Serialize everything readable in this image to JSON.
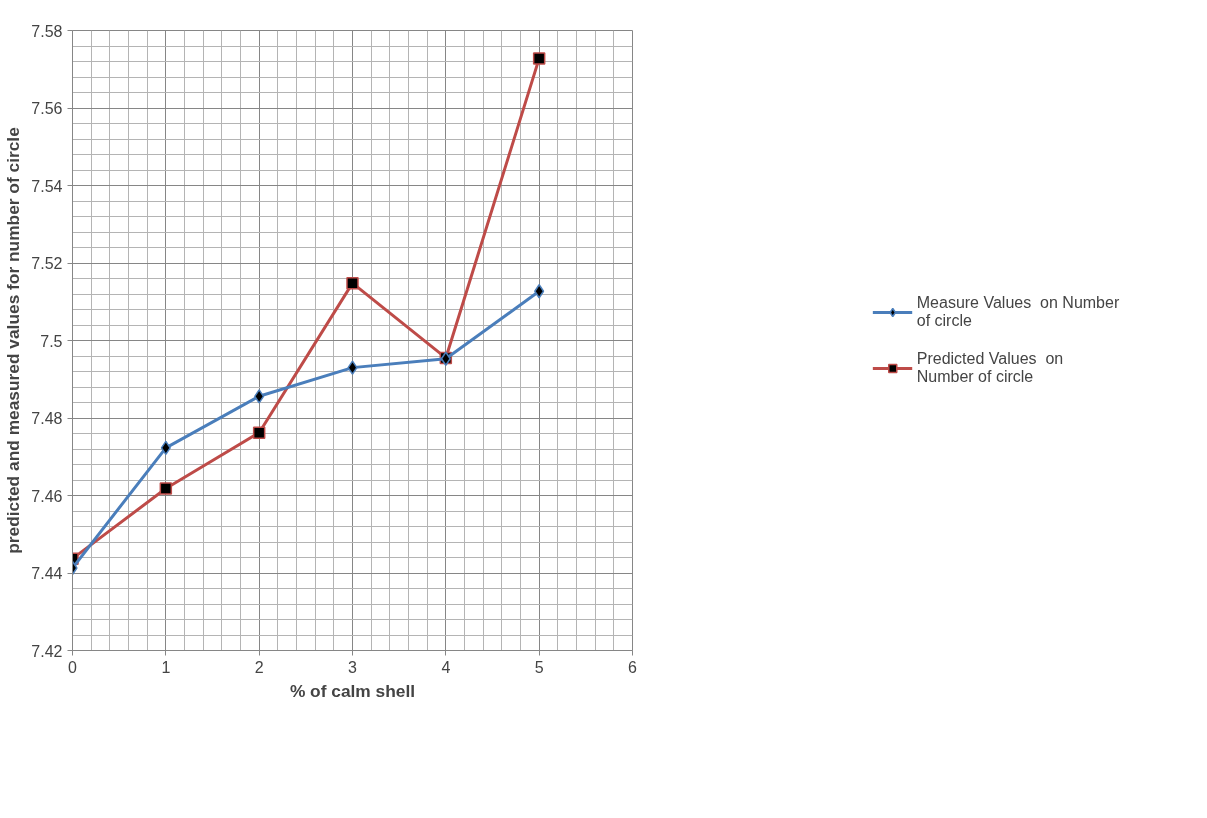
{
  "chart_data": {
    "type": "line",
    "xlabel": "% of calm shell",
    "ylabel": "predicted and measured values for number of circle",
    "x": [
      0,
      1,
      2,
      3,
      4,
      5
    ],
    "series": [
      {
        "name": "Measure Values  on Number of circle",
        "color": "#4a7ebb",
        "marker": "diamond",
        "values": [
          7.4413,
          7.4723,
          7.4856,
          7.493,
          7.4953,
          7.5127
        ]
      },
      {
        "name": "Predicted Values  on Number of circle",
        "color": "#be4b48",
        "marker": "square",
        "values": [
          7.4437,
          7.4618,
          7.4762,
          7.5148,
          7.4955,
          7.5728
        ]
      }
    ],
    "xlim": [
      0,
      6
    ],
    "xticks": [
      0,
      1,
      2,
      3,
      4,
      5,
      6
    ],
    "ylim": [
      7.42,
      7.58
    ],
    "yticks": [
      {
        "value": 7.42,
        "label": "7.42"
      },
      {
        "value": 7.44,
        "label": "7.44"
      },
      {
        "value": 7.46,
        "label": "7.46"
      },
      {
        "value": 7.48,
        "label": "7.48"
      },
      {
        "value": 7.5,
        "label": "7.5"
      },
      {
        "value": 7.52,
        "label": "7.52"
      },
      {
        "value": 7.54,
        "label": "7.54"
      },
      {
        "value": 7.56,
        "label": "7.56"
      },
      {
        "value": 7.58,
        "label": "7.58"
      }
    ],
    "grid": true,
    "legend": "right",
    "line_style": "solid"
  }
}
